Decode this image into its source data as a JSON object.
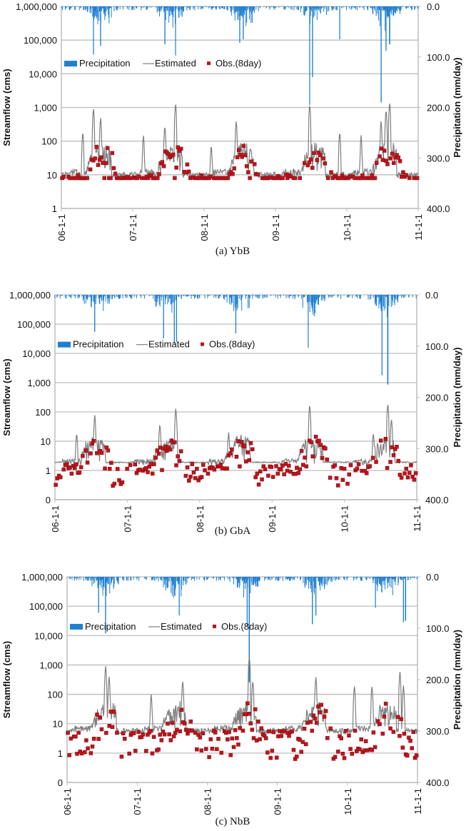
{
  "chart_data": [
    {
      "type": "line",
      "id": "a",
      "caption": "(a)  YbB",
      "ylabel": "Streamflow (cms)",
      "y2label": "Precipitation (mm/day)",
      "yscale": "log",
      "ylim": [
        1,
        1000000
      ],
      "y_ticks": [
        "1,000,000",
        "100,000",
        "10,000",
        "1,000",
        "100",
        "10",
        "1"
      ],
      "y2lim": [
        0,
        400
      ],
      "y2_ticks": [
        "0.0",
        "100.0",
        "200.0",
        "300.0",
        "400.0"
      ],
      "x_ticks": [
        "06-1-1",
        "07-1-1",
        "08-1-1",
        "09-1-1",
        "10-1-1",
        "11-1-1"
      ],
      "xlim_years": [
        2006,
        2011
      ],
      "grid": true,
      "legend": {
        "placement": "middle-left",
        "entries": [
          "Precipitation",
          "Estimated",
          "Obs.(8day)"
        ]
      },
      "colors": {
        "precipitation": "#1f7fd0",
        "estimated": "#7f7f7f",
        "observed": "#c0141c"
      },
      "series": [
        {
          "name": "Estimated",
          "baseflow": 12,
          "lowflow": 8,
          "peaks": [
            [
              0.45,
              1000
            ],
            [
              0.55,
              500
            ],
            [
              1.6,
              1400
            ],
            [
              1.45,
              300
            ],
            [
              2.45,
              400
            ],
            [
              3.48,
              1300
            ],
            [
              4.48,
              400
            ],
            [
              4.6,
              1500
            ],
            [
              4.55,
              900
            ],
            [
              0.3,
              200
            ],
            [
              1.15,
              150
            ],
            [
              2.1,
              80
            ],
            [
              3.9,
              200
            ],
            [
              4.2,
              150
            ]
          ]
        },
        {
          "name": "Obs.(8day)",
          "approx_range": [
            8,
            260
          ]
        },
        {
          "name": "Precipitation",
          "max_events_mm": [
            [
              0.45,
              95
            ],
            [
              0.55,
              78
            ],
            [
              1.6,
              97
            ],
            [
              1.45,
              75
            ],
            [
              2.5,
              72
            ],
            [
              2.55,
              65
            ],
            [
              3.48,
              195
            ],
            [
              3.52,
              140
            ],
            [
              3.9,
              65
            ],
            [
              4.48,
              190
            ],
            [
              4.55,
              88
            ],
            [
              4.6,
              75
            ]
          ]
        }
      ]
    },
    {
      "type": "line",
      "id": "b",
      "caption": "(b)  GbA",
      "ylabel": "Streamflow (cms)",
      "y2label": "Precipitation (mm/day)",
      "yscale": "log",
      "ylim": [
        0.1,
        1000000
      ],
      "y_ticks": [
        "1,000,000",
        "100,000",
        "10,000",
        "1,000",
        "100",
        "10",
        "1",
        "0"
      ],
      "y2lim": [
        0,
        400
      ],
      "y2_ticks": [
        "0.0",
        "100.0",
        "200.0",
        "300.0",
        "400.0"
      ],
      "x_ticks": [
        "06-1-1",
        "07-1-1",
        "08-1-1",
        "09-1-1",
        "10-1-1",
        "11-1-1"
      ],
      "xlim_years": [
        2006,
        2011
      ],
      "grid": true,
      "legend": {
        "placement": "middle-left",
        "entries": [
          "Precipitation",
          "Estimated",
          "Obs.(8day)"
        ]
      },
      "colors": {
        "precipitation": "#1f7fd0",
        "estimated": "#7f7f7f",
        "observed": "#c0141c"
      },
      "series": [
        {
          "name": "Estimated",
          "baseflow": 2,
          "lowflow": 1.8,
          "peaks": [
            [
              0.55,
              80
            ],
            [
              1.67,
              140
            ],
            [
              2.4,
              20
            ],
            [
              3.52,
              180
            ],
            [
              4.6,
              200
            ],
            [
              4.65,
              60
            ],
            [
              0.3,
              20
            ],
            [
              1.45,
              40
            ],
            [
              4.4,
              20
            ]
          ]
        },
        {
          "name": "Obs.(8day)",
          "approx_range": [
            0.3,
            220
          ]
        },
        {
          "name": "Precipitation",
          "max_events_mm": [
            [
              0.55,
              72
            ],
            [
              1.5,
              85
            ],
            [
              1.65,
              95
            ],
            [
              1.68,
              92
            ],
            [
              3.5,
              103
            ],
            [
              4.52,
              157
            ],
            [
              4.6,
              175
            ],
            [
              2.5,
              75
            ]
          ]
        }
      ]
    },
    {
      "type": "line",
      "id": "c",
      "caption": "(c)  NbB",
      "ylabel": "Streamflow (cms)",
      "y2label": "Precipitation (mm/day)",
      "yscale": "log",
      "ylim": [
        0.1,
        1000000
      ],
      "y_ticks": [
        "1,000,000",
        "100,000",
        "10,000",
        "1,000",
        "100",
        "10",
        "1",
        "0"
      ],
      "y2lim": [
        0,
        400
      ],
      "y2_ticks": [
        "0.0",
        "100.0",
        "200.0",
        "300.0",
        "400.0"
      ],
      "x_ticks": [
        "06-1-1",
        "07-1-1",
        "08-1-1",
        "09-1-1",
        "10-1-1",
        "11-1-1"
      ],
      "xlim_years": [
        2006,
        2011
      ],
      "grid": true,
      "legend": {
        "placement": "middle-left",
        "entries": [
          "Precipitation",
          "Estimated",
          "Obs.(8day)"
        ]
      },
      "colors": {
        "precipitation": "#1f7fd0",
        "estimated": "#7f7f7f",
        "observed": "#c0141c"
      },
      "series": [
        {
          "name": "Estimated",
          "baseflow": 7,
          "lowflow": 4.5,
          "peaks": [
            [
              0.55,
              950
            ],
            [
              0.6,
              400
            ],
            [
              1.65,
              300
            ],
            [
              1.2,
              100
            ],
            [
              2.6,
              2000
            ],
            [
              2.65,
              300
            ],
            [
              3.55,
              400
            ],
            [
              4.1,
              200
            ],
            [
              4.35,
              200
            ],
            [
              4.75,
              600
            ],
            [
              4.8,
              200
            ]
          ]
        },
        {
          "name": "Obs.(8day)",
          "approx_range": [
            0.5,
            260
          ]
        },
        {
          "name": "Precipitation",
          "max_events_mm": [
            [
              0.55,
              110
            ],
            [
              0.45,
              70
            ],
            [
              1.6,
              75
            ],
            [
              2.6,
              205
            ],
            [
              2.57,
              95
            ],
            [
              3.5,
              92
            ],
            [
              3.55,
              75
            ],
            [
              4.8,
              88
            ],
            [
              4.83,
              85
            ],
            [
              4.4,
              60
            ]
          ]
        }
      ]
    }
  ]
}
